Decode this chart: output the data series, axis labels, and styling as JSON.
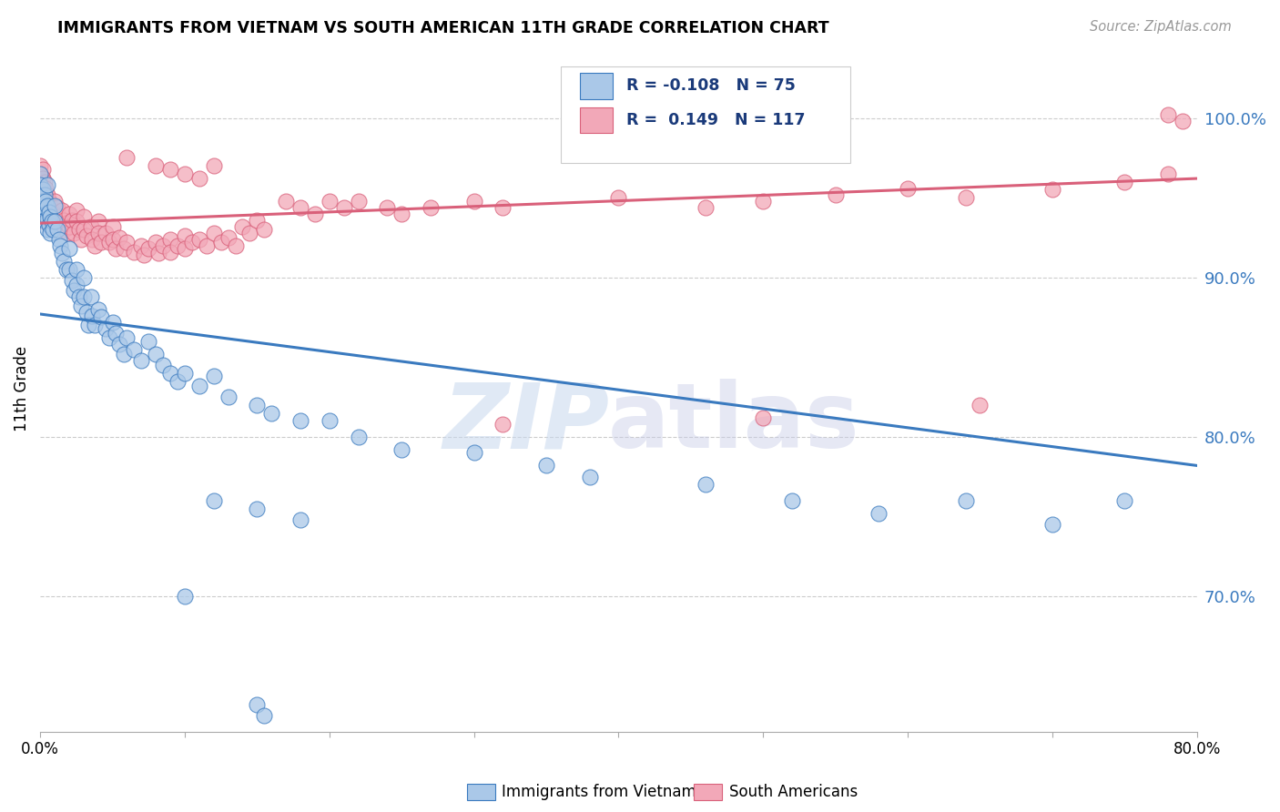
{
  "title": "IMMIGRANTS FROM VIETNAM VS SOUTH AMERICAN 11TH GRADE CORRELATION CHART",
  "source": "Source: ZipAtlas.com",
  "ylabel": "11th Grade",
  "ytick_labels": [
    "70.0%",
    "80.0%",
    "90.0%",
    "100.0%"
  ],
  "ytick_values": [
    0.7,
    0.8,
    0.9,
    1.0
  ],
  "xmin": 0.0,
  "xmax": 0.8,
  "ymin": 0.615,
  "ymax": 1.045,
  "legend_r_vietnam": "-0.108",
  "legend_n_vietnam": "75",
  "legend_r_south": "0.149",
  "legend_n_south": "117",
  "color_vietnam": "#aac8e8",
  "color_south": "#f2a8b8",
  "color_line_vietnam": "#3a7abf",
  "color_line_south": "#d9607a",
  "viet_trend_x0": 0.0,
  "viet_trend_y0": 0.877,
  "viet_trend_x1": 0.8,
  "viet_trend_y1": 0.782,
  "south_trend_x0": 0.0,
  "south_trend_y0": 0.934,
  "south_trend_x1": 0.8,
  "south_trend_y1": 0.962
}
